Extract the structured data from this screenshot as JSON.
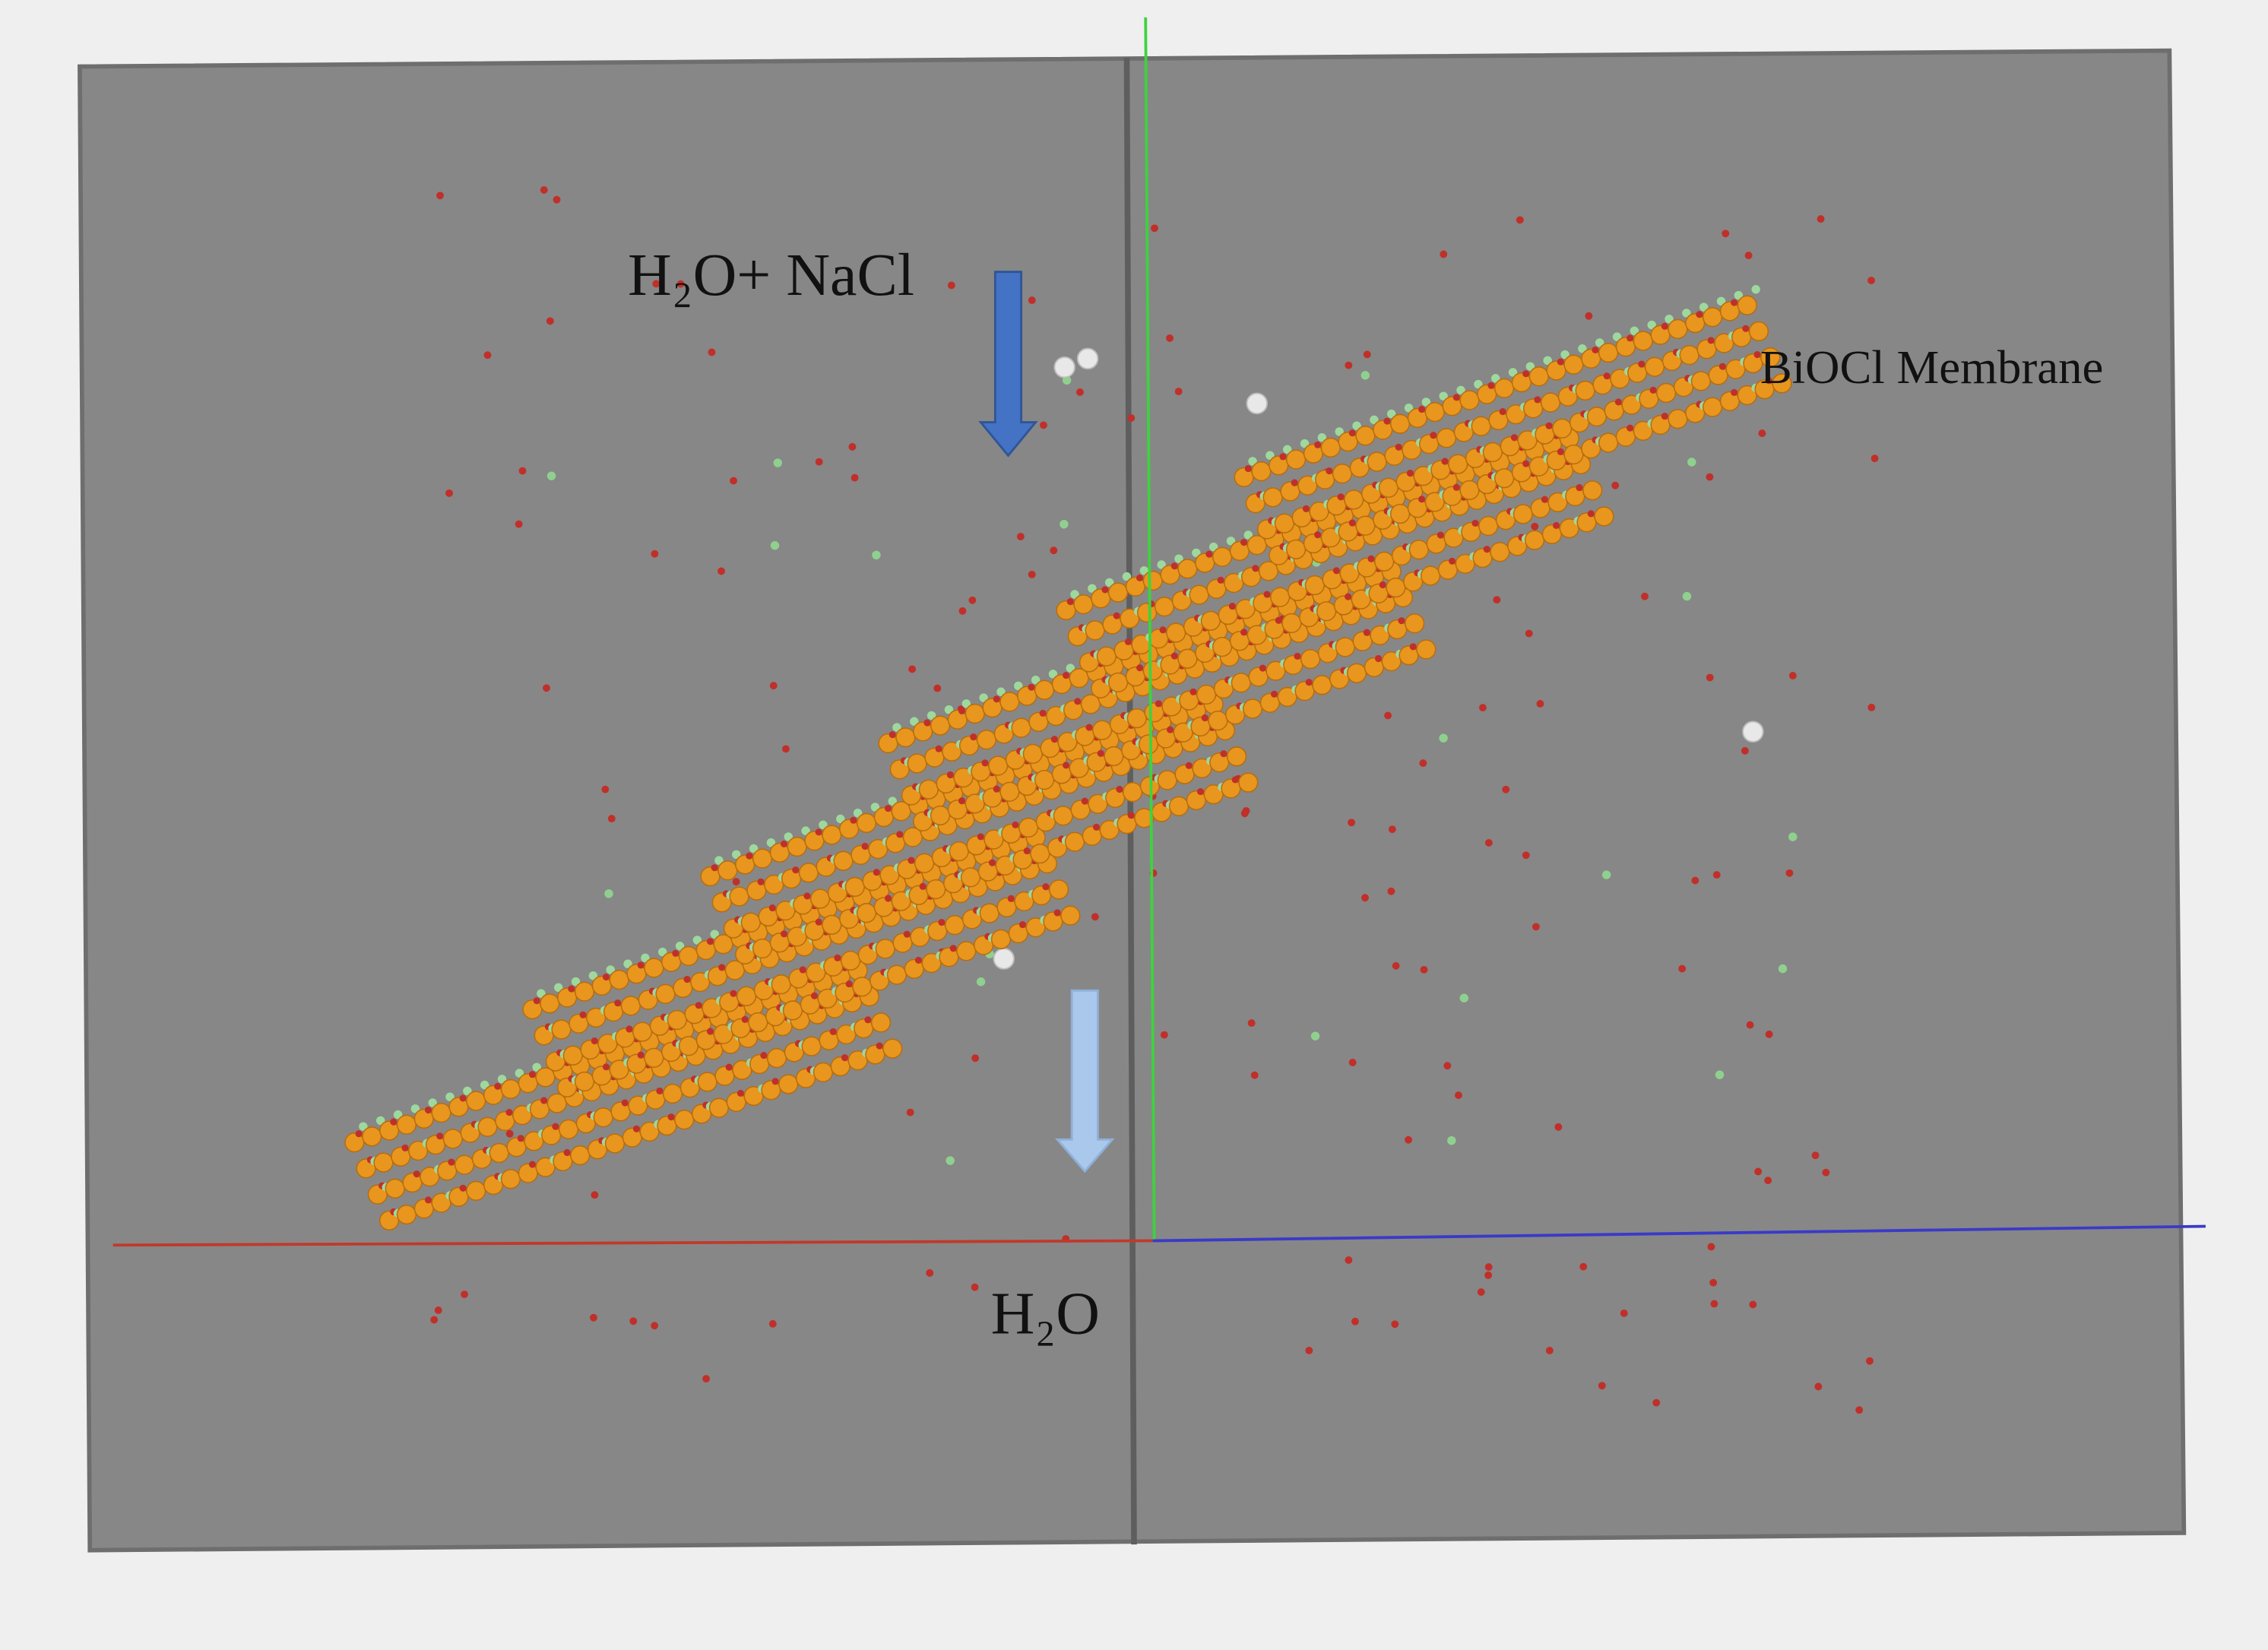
{
  "labels": {
    "feed": "H₂O+ NaCl",
    "membrane": "BiOCl Membrane",
    "permeate": "H₂O"
  }
}
